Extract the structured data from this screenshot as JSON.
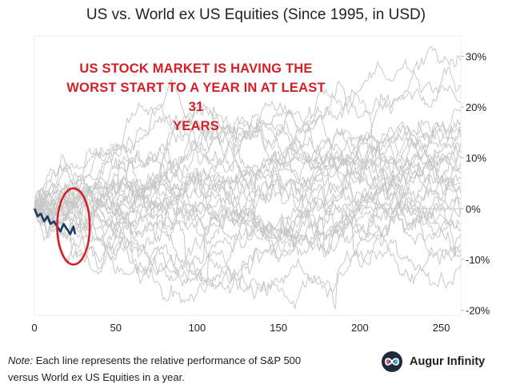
{
  "title": "US vs. World ex US Equities (Since 1995, in USD)",
  "annotation": {
    "line1": "US STOCK MARKET IS HAVING THE",
    "line2": "WORST START TO A YEAR IN AT LEAST 31",
    "line3": "YEARS",
    "color": "#d32026"
  },
  "note": {
    "label": "Note:",
    "text": " Each line represents the relative performance of S&P 500 versus World ex US Equities in a year."
  },
  "brand": {
    "name": "Augur Infinity",
    "logo_icon": "infinity-icon"
  },
  "chart_data": {
    "type": "line",
    "title": "US vs. World ex US Equities (Since 1995, in USD)",
    "xlabel": "",
    "ylabel": "",
    "xlim": [
      0,
      262
    ],
    "ylim": [
      -21,
      34
    ],
    "xticks": [
      0,
      50,
      100,
      150,
      200,
      250
    ],
    "xtick_labels": [
      "0",
      "50",
      "100",
      "150",
      "200",
      "250"
    ],
    "yticks": [
      30,
      20,
      10,
      0,
      -10,
      -20
    ],
    "ytick_labels": [
      "30%",
      "20%",
      "10%",
      "0%",
      "-10%",
      "-20%"
    ],
    "yaxis_side": "right",
    "grid": false,
    "colors": {
      "historical": "#c8c8c8",
      "current": "#1f3864",
      "highlight": "#d32026"
    },
    "historical_series": [
      {
        "days": 262,
        "end": 29
      },
      {
        "days": 262,
        "end": 24
      },
      {
        "days": 262,
        "end": 21
      },
      {
        "days": 262,
        "end": 19
      },
      {
        "days": 262,
        "end": 17
      },
      {
        "days": 262,
        "end": 15
      },
      {
        "days": 262,
        "end": 13
      },
      {
        "days": 262,
        "end": 11
      },
      {
        "days": 262,
        "end": 9
      },
      {
        "days": 262,
        "end": 7
      },
      {
        "days": 262,
        "end": 5
      },
      {
        "days": 262,
        "end": 3
      },
      {
        "days": 262,
        "end": 1
      },
      {
        "days": 262,
        "end": -1
      },
      {
        "days": 262,
        "end": -3
      },
      {
        "days": 262,
        "end": -5
      },
      {
        "days": 262,
        "end": -7
      },
      {
        "days": 262,
        "end": -9
      },
      {
        "days": 262,
        "end": -11
      },
      {
        "days": 262,
        "end": 4
      },
      {
        "days": 262,
        "end": 8
      },
      {
        "days": 262,
        "end": 12
      },
      {
        "days": 262,
        "end": 16
      },
      {
        "days": 262,
        "end": 0
      },
      {
        "days": 262,
        "end": -4
      },
      {
        "days": 262,
        "end": 6
      },
      {
        "days": 262,
        "end": 10
      },
      {
        "days": 262,
        "end": 14
      },
      {
        "days": 262,
        "end": 2
      },
      {
        "days": 262,
        "end": -8
      }
    ],
    "current_series": {
      "x": [
        0,
        2,
        4,
        6,
        8,
        10,
        12,
        14,
        16,
        18,
        20,
        22,
        24,
        25
      ],
      "y": [
        0,
        -1.5,
        -1,
        -2.5,
        -1.5,
        -3,
        -2.5,
        -3.5,
        -4.5,
        -3,
        -4,
        -5,
        -3.5,
        -5
      ]
    },
    "highlight_circle": {
      "cx": 24,
      "cy": -3.5,
      "rx": 10,
      "ry": 7.5
    }
  }
}
